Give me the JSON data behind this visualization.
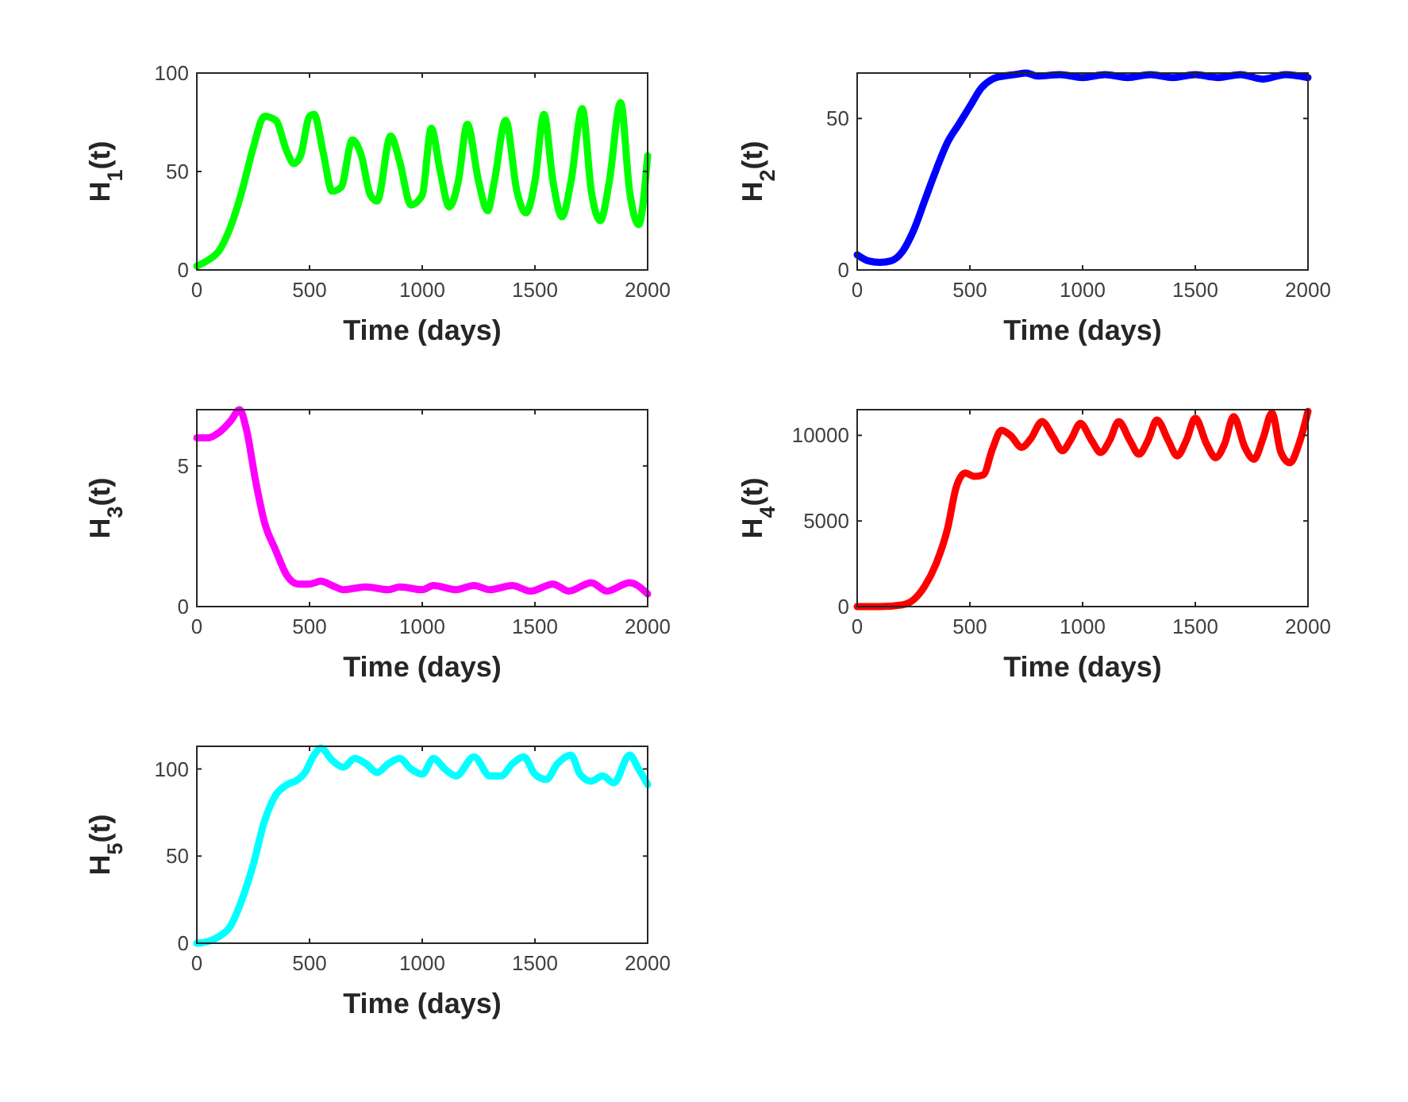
{
  "chart_data": [
    {
      "type": "line",
      "xlabel": "Time (days)",
      "ylabel": "H$_{1}$(t)",
      "xlim": [
        0,
        2000
      ],
      "xticks": [
        0,
        500,
        1000,
        1500,
        2000
      ],
      "ylim": [
        0,
        100
      ],
      "yticks": [
        0,
        50,
        100
      ],
      "grid": false,
      "series": [
        {
          "color": "#00ff00",
          "x": [
            0,
            50,
            100,
            150,
            200,
            250,
            300,
            350,
            400,
            430,
            460,
            500,
            520,
            560,
            600,
            640,
            690,
            730,
            770,
            800,
            860,
            900,
            950,
            1000,
            1040,
            1080,
            1120,
            1160,
            1200,
            1250,
            1290,
            1320,
            1370,
            1420,
            1460,
            1500,
            1540,
            1580,
            1620,
            1660,
            1710,
            1750,
            1790,
            1830,
            1880,
            1920,
            1960,
            2000
          ],
          "values": [
            2,
            5,
            10,
            22,
            40,
            62,
            78,
            76,
            60,
            54,
            58,
            78,
            79,
            60,
            40,
            42,
            66,
            58,
            38,
            35,
            68,
            55,
            33,
            38,
            72,
            50,
            32,
            45,
            74,
            45,
            30,
            45,
            76,
            40,
            29,
            45,
            79,
            45,
            27,
            45,
            82,
            40,
            25,
            45,
            85,
            40,
            23,
            58
          ]
        }
      ]
    },
    {
      "type": "line",
      "xlabel": "Time (days)",
      "ylabel": "H$_{2}$(t)",
      "xlim": [
        0,
        2000
      ],
      "xticks": [
        0,
        500,
        1000,
        1500,
        2000
      ],
      "ylim": [
        0,
        65
      ],
      "yticks": [
        0,
        50
      ],
      "grid": false,
      "series": [
        {
          "color": "#0000ff",
          "x": [
            0,
            50,
            100,
            150,
            200,
            250,
            300,
            350,
            400,
            450,
            500,
            550,
            600,
            650,
            700,
            750,
            800,
            900,
            1000,
            1100,
            1200,
            1300,
            1400,
            1500,
            1600,
            1700,
            1800,
            1900,
            2000
          ],
          "values": [
            5,
            3,
            2.5,
            3,
            6,
            13,
            23,
            33,
            42,
            48,
            54,
            60,
            63,
            64,
            64.5,
            65,
            64,
            64.5,
            63.5,
            64.5,
            63.5,
            64.5,
            63.5,
            64.5,
            63.5,
            64.5,
            63,
            64.5,
            63.5
          ]
        }
      ]
    },
    {
      "type": "line",
      "xlabel": "Time (days)",
      "ylabel": "H$_{3}$(t)",
      "xlim": [
        0,
        2000
      ],
      "xticks": [
        0,
        500,
        1000,
        1500,
        2000
      ],
      "ylim": [
        0,
        7
      ],
      "yticks": [
        0,
        5
      ],
      "grid": false,
      "series": [
        {
          "color": "#ff00ff",
          "x": [
            0,
            50,
            100,
            150,
            190,
            220,
            260,
            300,
            350,
            400,
            450,
            500,
            550,
            600,
            650,
            700,
            750,
            850,
            900,
            1000,
            1050,
            1150,
            1230,
            1300,
            1400,
            1480,
            1580,
            1650,
            1750,
            1820,
            1920,
            2000
          ],
          "values": [
            6,
            6,
            6.2,
            6.6,
            7,
            6.3,
            4.5,
            3,
            2,
            1.1,
            0.8,
            0.8,
            0.9,
            0.75,
            0.6,
            0.65,
            0.7,
            0.6,
            0.7,
            0.6,
            0.75,
            0.6,
            0.75,
            0.6,
            0.75,
            0.55,
            0.8,
            0.55,
            0.85,
            0.55,
            0.85,
            0.45
          ]
        }
      ]
    },
    {
      "type": "line",
      "xlabel": "Time (days)",
      "ylabel": "H$_{4}$(t)",
      "xlim": [
        0,
        2000
      ],
      "xticks": [
        0,
        500,
        1000,
        1500,
        2000
      ],
      "ylim": [
        0,
        11500
      ],
      "yticks": [
        0,
        5000,
        10000
      ],
      "grid": false,
      "series": [
        {
          "color": "#ff0000",
          "x": [
            0,
            100,
            200,
            250,
            300,
            350,
            400,
            440,
            480,
            520,
            560,
            600,
            640,
            680,
            730,
            770,
            820,
            870,
            910,
            950,
            990,
            1040,
            1080,
            1120,
            1160,
            1210,
            1250,
            1290,
            1330,
            1380,
            1420,
            1460,
            1500,
            1550,
            1590,
            1630,
            1670,
            1720,
            1760,
            1800,
            1840,
            1880,
            1920,
            1960,
            2000
          ],
          "values": [
            0,
            0,
            100,
            400,
            1200,
            2500,
            4500,
            7000,
            7800,
            7600,
            7700,
            9200,
            10300,
            10000,
            9300,
            9800,
            10800,
            9900,
            9100,
            9800,
            10700,
            9700,
            9000,
            9700,
            10800,
            9700,
            8900,
            9700,
            10900,
            9700,
            8800,
            9700,
            11000,
            9500,
            8700,
            9500,
            11100,
            9300,
            8600,
            9800,
            11300,
            9000,
            8400,
            9500,
            11400
          ]
        }
      ]
    },
    {
      "type": "line",
      "xlabel": "Time (days)",
      "ylabel": "H$_{5}$(t)",
      "xlim": [
        0,
        2000
      ],
      "xticks": [
        0,
        500,
        1000,
        1500,
        2000
      ],
      "ylim": [
        0,
        113
      ],
      "yticks": [
        0,
        50,
        100
      ],
      "grid": false,
      "series": [
        {
          "color": "#00ffff",
          "x": [
            0,
            50,
            100,
            150,
            200,
            250,
            300,
            350,
            400,
            450,
            480,
            520,
            550,
            600,
            650,
            700,
            750,
            800,
            850,
            900,
            950,
            1000,
            1050,
            1100,
            1150,
            1230,
            1300,
            1350,
            1400,
            1450,
            1500,
            1550,
            1600,
            1660,
            1700,
            1750,
            1800,
            1850,
            1920,
            1960,
            2000
          ],
          "values": [
            0,
            1,
            4,
            10,
            25,
            45,
            70,
            85,
            91,
            94,
            98,
            108,
            112,
            105,
            101,
            106,
            103,
            98,
            103,
            106,
            100,
            97,
            106,
            100,
            96,
            107,
            96,
            96,
            103,
            107,
            97,
            94,
            103,
            108,
            97,
            93,
            96,
            92,
            108,
            100,
            91
          ]
        }
      ]
    }
  ]
}
